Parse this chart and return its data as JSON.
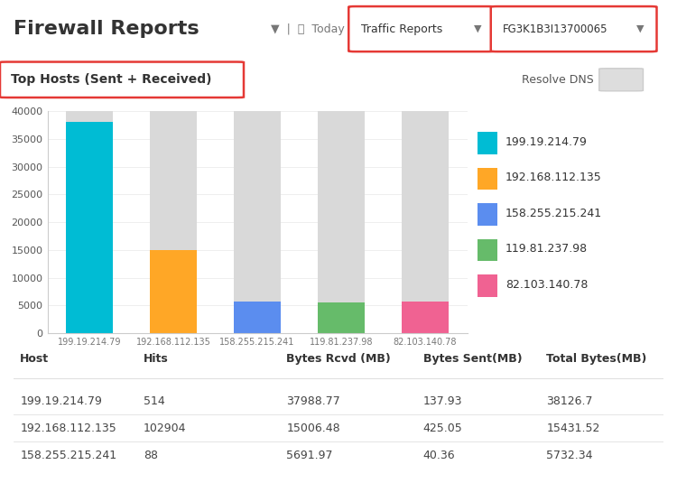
{
  "title": "Firewall Reports",
  "subtitle": "Top Hosts (Sent + Received)",
  "filter_text": "Today",
  "dropdown1": "Traffic Reports",
  "dropdown2": "FG3K1B3I13700065",
  "resolve_dns": "Resolve DNS",
  "hosts": [
    "199.19.214.79",
    "192.168.112.135",
    "158.255.215.241",
    "119.81.237.98",
    "82.103.140.78"
  ],
  "bar_total_heights": [
    40000,
    40000,
    40000,
    40000,
    40000
  ],
  "bar_colored_heights": [
    37988.77,
    15006.48,
    5691.97,
    5500,
    5732.34
  ],
  "bar_colors": [
    "#00BCD4",
    "#FFA726",
    "#5B8DEF",
    "#66BB6A",
    "#F06292"
  ],
  "legend_labels": [
    "199.19.214.79",
    "192.168.112.135",
    "158.255.215.241",
    "119.81.237.98",
    "82.103.140.78"
  ],
  "legend_colors": [
    "#00BCD4",
    "#FFA726",
    "#5B8DEF",
    "#66BB6A",
    "#F06292"
  ],
  "ylim": [
    0,
    40000
  ],
  "yticks": [
    0,
    5000,
    10000,
    15000,
    20000,
    25000,
    30000,
    35000,
    40000
  ],
  "gray_color": "#D9D9D9",
  "bg_color": "#FFFFFF",
  "panel_bg": "#F5F5F5",
  "table_headers": [
    "Host",
    "Hits",
    "Bytes Rcvd (MB)",
    "Bytes Sent(MB)",
    "Total Bytes(MB)"
  ],
  "table_data": [
    [
      "199.19.214.79",
      "514",
      "37988.77",
      "137.93",
      "38126.7"
    ],
    [
      "192.168.112.135",
      "102904",
      "15006.48",
      "425.05",
      "15431.52"
    ],
    [
      "158.255.215.241",
      "88",
      "5691.97",
      "40.36",
      "5732.34"
    ]
  ],
  "border_color": "#E0E0E0",
  "red_border": "#E53935",
  "title_fontsize": 16,
  "axis_fontsize": 8,
  "legend_fontsize": 9,
  "table_fontsize": 9
}
